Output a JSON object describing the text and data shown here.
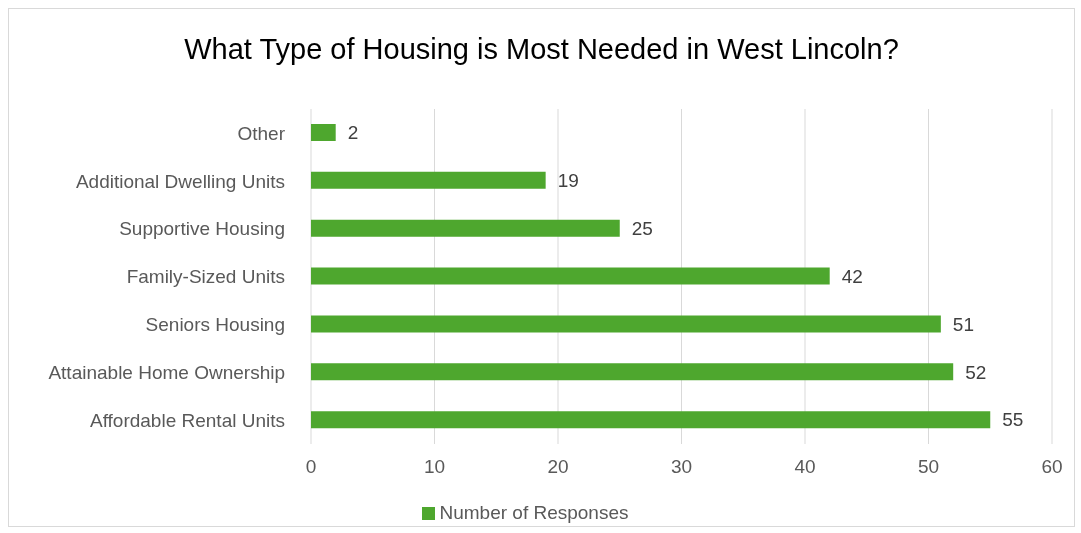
{
  "chart_data": {
    "type": "bar",
    "orientation": "horizontal",
    "title": "What Type of Housing is Most Needed in West Lincoln?",
    "categories": [
      "Other",
      "Additional Dwelling Units",
      "Supportive Housing",
      "Family-Sized Units",
      "Seniors Housing",
      "Attainable Home Ownership",
      "Affordable Rental Units"
    ],
    "series": [
      {
        "name": "Number of Responses",
        "color": "#4ea72e",
        "values": [
          2,
          19,
          25,
          42,
          51,
          52,
          55
        ]
      }
    ],
    "xlim": [
      0,
      60
    ],
    "xticks": [
      0,
      10,
      20,
      30,
      40,
      50,
      60
    ],
    "grid": "x",
    "legend": "bottom",
    "data_labels": true
  }
}
